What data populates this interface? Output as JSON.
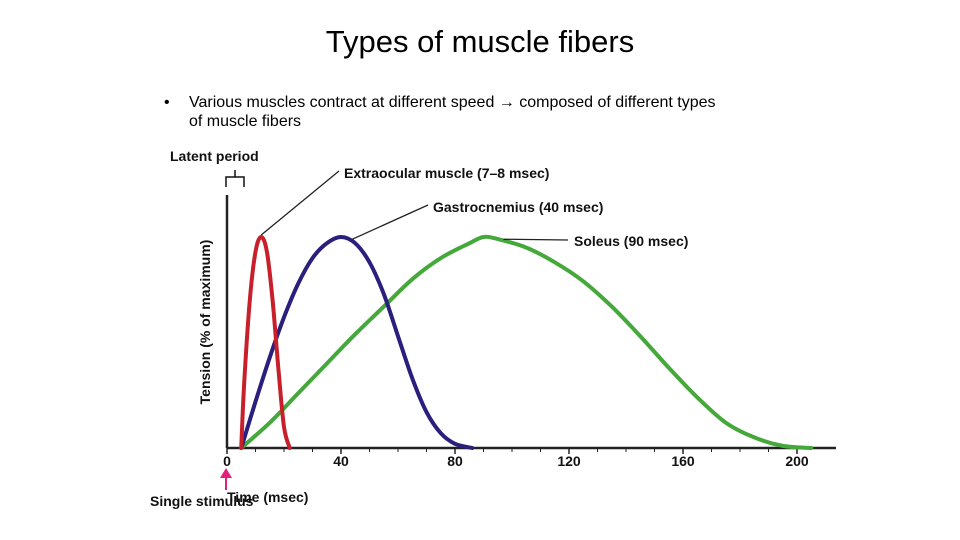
{
  "slide": {
    "title": "Types of muscle fibers",
    "bullet": "Various muscles contract at different speed → composed of different types of muscle fibers"
  },
  "chart_data": {
    "type": "line",
    "xlabel": "Time (msec)",
    "ylabel": "Tension (% of maximum)",
    "xlim": [
      0,
      210
    ],
    "ylim": [
      0,
      100
    ],
    "x_ticks": [
      0,
      40,
      80,
      120,
      160,
      200
    ],
    "grid": false,
    "annotations": {
      "latent_period": "Latent period",
      "stimulus": "Single stimulus"
    },
    "series": [
      {
        "name": "Extraocular muscle (7–8 msec)",
        "color": "#c8202a",
        "x": [
          5,
          6,
          8,
          10,
          12,
          14,
          16,
          18,
          20,
          22
        ],
        "y": [
          0,
          30,
          70,
          93,
          100,
          93,
          70,
          38,
          10,
          0
        ]
      },
      {
        "name": "Gastrocnemius (40 msec)",
        "color": "#2b1f7d",
        "x": [
          5,
          10,
          15,
          20,
          25,
          30,
          35,
          40,
          45,
          50,
          55,
          60,
          65,
          70,
          75,
          80,
          86
        ],
        "y": [
          0,
          22,
          43,
          62,
          78,
          90,
          97,
          100,
          97,
          88,
          73,
          53,
          33,
          17,
          7,
          2,
          0
        ]
      },
      {
        "name": "Soleus (90 msec)",
        "color": "#44a83a",
        "x": [
          5,
          15,
          25,
          35,
          45,
          55,
          65,
          75,
          85,
          90,
          95,
          105,
          115,
          125,
          135,
          145,
          155,
          165,
          175,
          185,
          195,
          205
        ],
        "y": [
          0,
          12,
          26,
          40,
          54,
          67,
          80,
          90,
          97,
          100,
          99,
          95,
          88,
          79,
          67,
          53,
          38,
          24,
          12,
          5,
          1,
          0
        ]
      }
    ]
  }
}
